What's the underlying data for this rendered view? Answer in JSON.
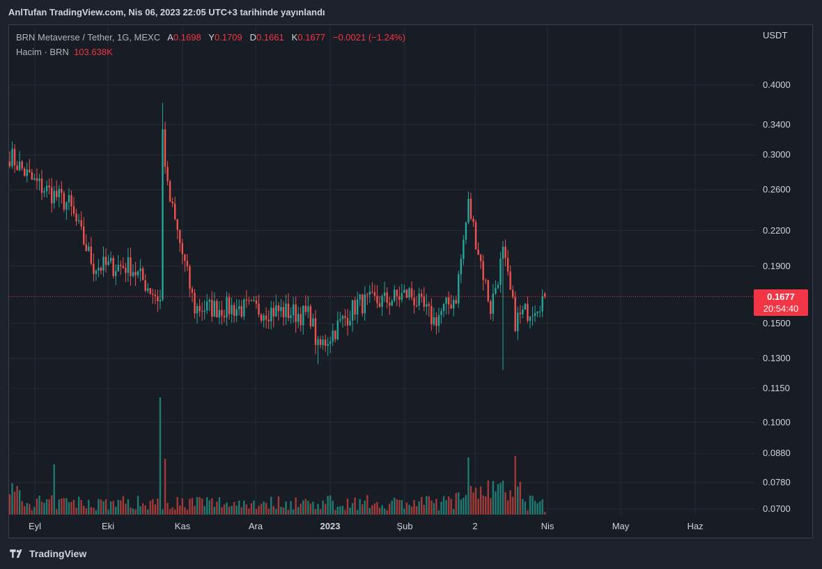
{
  "header": {
    "publisher": "AnlTufan TradingView.com, Nis 06, 2023 22:05 UTC+3 tarihinde yayınlandı"
  },
  "legend": {
    "symbol": "BRN Metaverse / Tether, 1G, MEXC",
    "open_label": "A",
    "open": "0.1698",
    "high_label": "Y",
    "high": "0.1709",
    "low_label": "D",
    "low": "0.1661",
    "close_label": "K",
    "close": "0.1677",
    "change": "−0.0021 (−1.24%)",
    "volume_label": "Hacim · BRN",
    "volume": "103.638K"
  },
  "price_axis": {
    "unit": "USDT",
    "ticks": [
      "0.4000",
      "0.3400",
      "0.3000",
      "0.2600",
      "0.2200",
      "0.1900",
      "0.1500",
      "0.1300",
      "0.1150",
      "0.1000",
      "0.0880",
      "0.0780",
      "0.0700"
    ]
  },
  "time_axis": {
    "ticks": [
      "Eyl",
      "Eki",
      "Kas",
      "Ara",
      "2023",
      "Şub",
      "2",
      "Nis",
      "May",
      "Haz"
    ]
  },
  "last_price": {
    "price": "0.1677",
    "countdown": "20:54:40"
  },
  "brand": {
    "name": "TradingView"
  },
  "colors": {
    "up": "#26a69a",
    "down": "#ef5350",
    "up_vol": "#1f7a72",
    "down_vol": "#a23a38",
    "last_price": "#f23645"
  },
  "chart_data": {
    "type": "candlestick",
    "title": "BRN Metaverse / Tether, 1G, MEXC",
    "interval": "1D",
    "scale": "log",
    "grid": true,
    "ylim": [
      0.07,
      0.42
    ],
    "series": [
      {
        "name": "BRN Metaverse / Tether",
        "anchor_dates": [
          "2022-09-01",
          "2022-09-10",
          "2022-09-25",
          "2022-10-05",
          "2022-10-20",
          "2022-11-01",
          "2022-11-02",
          "2022-11-04",
          "2022-11-15",
          "2022-12-01",
          "2022-12-20",
          "2023-01-01",
          "2023-01-04",
          "2023-01-20",
          "2023-02-01",
          "2023-02-10",
          "2023-02-20",
          "2023-03-01",
          "2023-03-06",
          "2023-03-15",
          "2023-03-20",
          "2023-03-25",
          "2023-04-06"
        ],
        "anchor_close": [
          0.3,
          0.27,
          0.245,
          0.19,
          0.19,
          0.165,
          0.33,
          0.26,
          0.16,
          0.16,
          0.158,
          0.155,
          0.135,
          0.163,
          0.165,
          0.17,
          0.152,
          0.168,
          0.245,
          0.16,
          0.2,
          0.152,
          0.1677
        ]
      },
      {
        "name": "Hacim · BRN",
        "last": 103638,
        "peak_dates": [
          "2022-11-01",
          "2022-09-19",
          "2023-03-25"
        ]
      }
    ]
  }
}
